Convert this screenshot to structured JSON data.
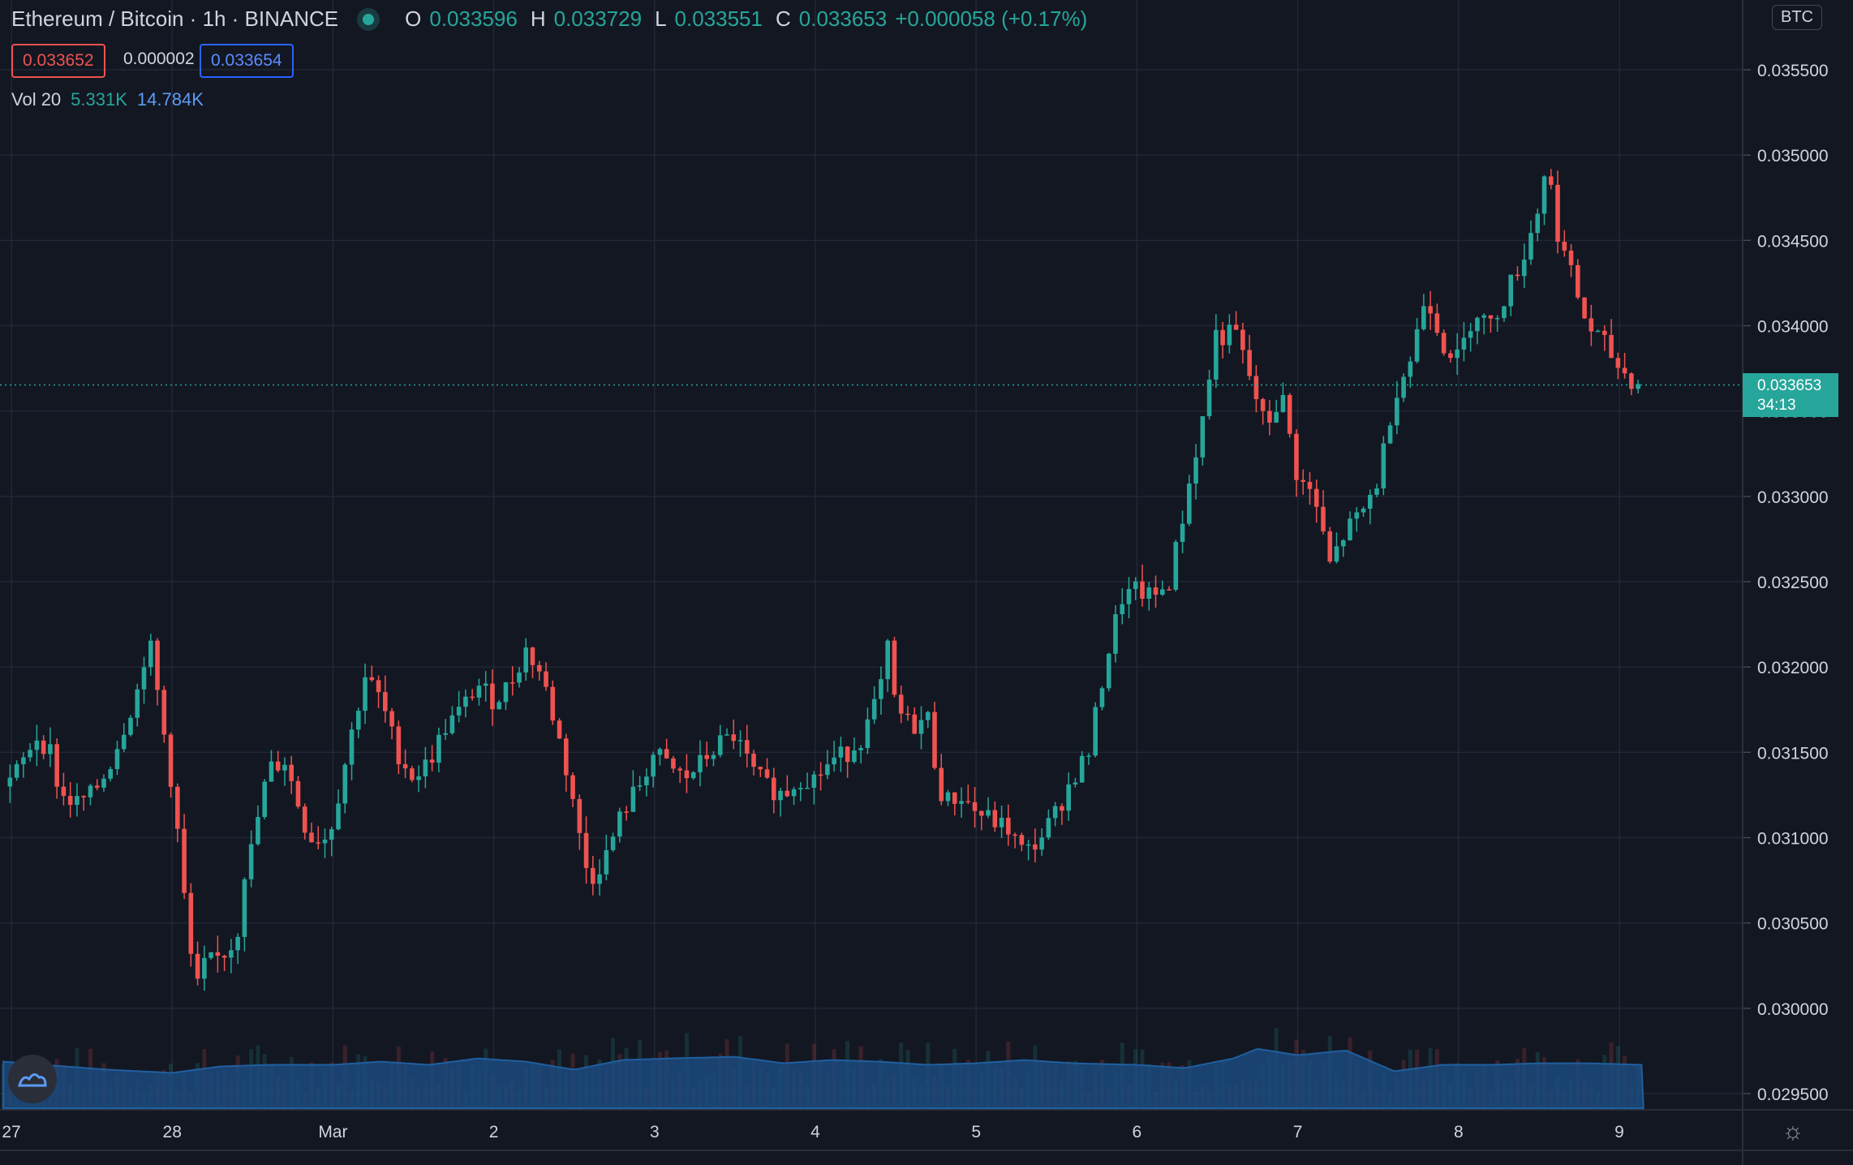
{
  "header": {
    "symbol": "Ethereum / Bitcoin · 1h · BINANCE",
    "o_label": "O",
    "o": "0.033596",
    "h_label": "H",
    "h": "0.033729",
    "l_label": "L",
    "l": "0.033551",
    "c_label": "C",
    "c": "0.033653",
    "change": "+0.000058 (+0.17%)",
    "bid": "0.033652",
    "spread": "0.000002",
    "ask": "0.033654",
    "vol_label": "Vol 20",
    "vol_a": "5.331K",
    "vol_b": "14.784K",
    "currency": "BTC",
    "last_price": "0.033653",
    "countdown": "34:13"
  },
  "colors": {
    "up": "#26a69a",
    "down": "#ef5350",
    "bg": "#131722",
    "grid": "#232735",
    "volume_ma": "#1c4a7e"
  },
  "chart_data": {
    "type": "candlestick",
    "yticks": [
      "0.035500",
      "0.035000",
      "0.034500",
      "0.034000",
      "0.033500",
      "0.033000",
      "0.032500",
      "0.032000",
      "0.031500",
      "0.031000",
      "0.030500",
      "0.030000",
      "0.029500"
    ],
    "ylim": [
      0.02945,
      0.0359
    ],
    "xticks": [
      "27",
      "28",
      "Mar",
      "2",
      "3",
      "4",
      "5",
      "6",
      "7",
      "8",
      "9"
    ],
    "x_day_positions": [
      0,
      1,
      2,
      3,
      4,
      5,
      6,
      7,
      8,
      9,
      10
    ],
    "close_path": [
      [
        -0.05,
        0.0313
      ],
      [
        0.05,
        0.0314
      ],
      [
        0.15,
        0.0316
      ],
      [
        0.25,
        0.0315
      ],
      [
        0.3,
        0.03125
      ],
      [
        0.4,
        0.0312
      ],
      [
        0.5,
        0.03125
      ],
      [
        0.6,
        0.0314
      ],
      [
        0.7,
        0.03165
      ],
      [
        0.8,
        0.0319
      ],
      [
        0.85,
        0.0322
      ],
      [
        0.9,
        0.0319
      ],
      [
        0.95,
        0.0316
      ],
      [
        1.0,
        0.0313
      ],
      [
        1.05,
        0.0309
      ],
      [
        1.1,
        0.0304
      ],
      [
        1.15,
        0.0301
      ],
      [
        1.2,
        0.03025
      ],
      [
        1.3,
        0.0303
      ],
      [
        1.4,
        0.0304
      ],
      [
        1.45,
        0.0308
      ],
      [
        1.5,
        0.03095
      ],
      [
        1.55,
        0.0312
      ],
      [
        1.6,
        0.0314
      ],
      [
        1.7,
        0.03145
      ],
      [
        1.8,
        0.03115
      ],
      [
        1.85,
        0.031
      ],
      [
        1.95,
        0.031
      ],
      [
        2.0,
        0.0311
      ],
      [
        2.1,
        0.03155
      ],
      [
        2.2,
        0.03195
      ],
      [
        2.3,
        0.0318
      ],
      [
        2.4,
        0.0315
      ],
      [
        2.5,
        0.03135
      ],
      [
        2.6,
        0.03145
      ],
      [
        2.7,
        0.03165
      ],
      [
        2.8,
        0.03175
      ],
      [
        2.9,
        0.0319
      ],
      [
        3.0,
        0.0318
      ],
      [
        3.1,
        0.0319
      ],
      [
        3.2,
        0.0321
      ],
      [
        3.3,
        0.03195
      ],
      [
        3.4,
        0.0316
      ],
      [
        3.5,
        0.0312
      ],
      [
        3.55,
        0.0309
      ],
      [
        3.6,
        0.03075
      ],
      [
        3.7,
        0.0309
      ],
      [
        3.8,
        0.03115
      ],
      [
        3.9,
        0.0313
      ],
      [
        4.0,
        0.0315
      ],
      [
        4.1,
        0.0314
      ],
      [
        4.2,
        0.03135
      ],
      [
        4.3,
        0.03145
      ],
      [
        4.4,
        0.03155
      ],
      [
        4.5,
        0.0316
      ],
      [
        4.6,
        0.0314
      ],
      [
        4.7,
        0.0313
      ],
      [
        4.8,
        0.03125
      ],
      [
        4.9,
        0.03135
      ],
      [
        5.0,
        0.03135
      ],
      [
        5.1,
        0.03145
      ],
      [
        5.2,
        0.0315
      ],
      [
        5.3,
        0.0316
      ],
      [
        5.4,
        0.03185
      ],
      [
        5.45,
        0.0321
      ],
      [
        5.5,
        0.03175
      ],
      [
        5.6,
        0.03165
      ],
      [
        5.7,
        0.0317
      ],
      [
        5.75,
        0.0314
      ],
      [
        5.8,
        0.0312
      ],
      [
        5.9,
        0.03125
      ],
      [
        6.0,
        0.03115
      ],
      [
        6.1,
        0.0311
      ],
      [
        6.2,
        0.03105
      ],
      [
        6.3,
        0.0309
      ],
      [
        6.4,
        0.031
      ],
      [
        6.5,
        0.03115
      ],
      [
        6.6,
        0.03135
      ],
      [
        6.7,
        0.0315
      ],
      [
        6.8,
        0.032
      ],
      [
        6.9,
        0.0324
      ],
      [
        7.0,
        0.03245
      ],
      [
        7.1,
        0.0324
      ],
      [
        7.2,
        0.0325
      ],
      [
        7.3,
        0.03295
      ],
      [
        7.35,
        0.0332
      ],
      [
        7.4,
        0.0334
      ],
      [
        7.5,
        0.034
      ],
      [
        7.55,
        0.0339
      ],
      [
        7.6,
        0.034
      ],
      [
        7.7,
        0.0337
      ],
      [
        7.8,
        0.0334
      ],
      [
        7.9,
        0.0336
      ],
      [
        8.0,
        0.0331
      ],
      [
        8.1,
        0.033
      ],
      [
        8.2,
        0.0326
      ],
      [
        8.3,
        0.0328
      ],
      [
        8.4,
        0.0329
      ],
      [
        8.5,
        0.0331
      ],
      [
        8.6,
        0.0336
      ],
      [
        8.7,
        0.0338
      ],
      [
        8.8,
        0.0342
      ],
      [
        8.9,
        0.0339
      ],
      [
        9.0,
        0.0338
      ],
      [
        9.1,
        0.0341
      ],
      [
        9.2,
        0.034
      ],
      [
        9.3,
        0.0342
      ],
      [
        9.4,
        0.0344
      ],
      [
        9.5,
        0.0347
      ],
      [
        9.55,
        0.035
      ],
      [
        9.6,
        0.0346
      ],
      [
        9.7,
        0.0343
      ],
      [
        9.8,
        0.034
      ],
      [
        9.9,
        0.0339
      ],
      [
        10.0,
        0.03375
      ],
      [
        10.1,
        0.03366
      ],
      [
        10.15,
        0.03365
      ]
    ],
    "volume_ma_path": [
      [
        -0.05,
        0.29
      ],
      [
        0.2,
        0.27
      ],
      [
        0.6,
        0.24
      ],
      [
        1.0,
        0.22
      ],
      [
        1.3,
        0.26
      ],
      [
        1.6,
        0.27
      ],
      [
        2.0,
        0.27
      ],
      [
        2.3,
        0.29
      ],
      [
        2.6,
        0.27
      ],
      [
        2.9,
        0.31
      ],
      [
        3.2,
        0.29
      ],
      [
        3.5,
        0.24
      ],
      [
        3.8,
        0.3
      ],
      [
        4.1,
        0.31
      ],
      [
        4.5,
        0.32
      ],
      [
        4.8,
        0.28
      ],
      [
        5.1,
        0.3
      ],
      [
        5.4,
        0.29
      ],
      [
        5.7,
        0.27
      ],
      [
        6.0,
        0.28
      ],
      [
        6.3,
        0.3
      ],
      [
        6.6,
        0.28
      ],
      [
        7.0,
        0.27
      ],
      [
        7.3,
        0.25
      ],
      [
        7.6,
        0.31
      ],
      [
        7.75,
        0.37
      ],
      [
        8.0,
        0.33
      ],
      [
        8.3,
        0.36
      ],
      [
        8.6,
        0.23
      ],
      [
        8.9,
        0.27
      ],
      [
        9.2,
        0.27
      ],
      [
        9.5,
        0.28
      ],
      [
        9.8,
        0.28
      ],
      [
        10.15,
        0.27
      ]
    ],
    "candles_per_day": 24
  }
}
